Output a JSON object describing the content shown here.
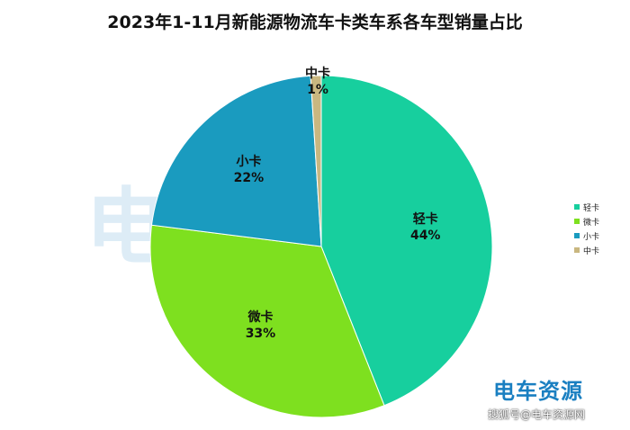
{
  "chart_data": {
    "type": "pie",
    "title": "2023年1-11月新能源物流车卡类车系各车型销量占比",
    "slices": [
      {
        "name": "轻卡",
        "value": 44,
        "label": "44%",
        "color": "#17cf9e"
      },
      {
        "name": "微卡",
        "value": 33,
        "label": "33%",
        "color": "#7ee01f"
      },
      {
        "name": "小卡",
        "value": 22,
        "label": "22%",
        "color": "#1a9bbf"
      },
      {
        "name": "中卡",
        "value": 1,
        "label": "1%",
        "color": "#c9b780"
      }
    ],
    "legend_position": "right"
  },
  "watermark": {
    "text": "电车资源"
  },
  "logo": {
    "text": "电车资源"
  },
  "source_credit": "搜狐号@电车资源网"
}
